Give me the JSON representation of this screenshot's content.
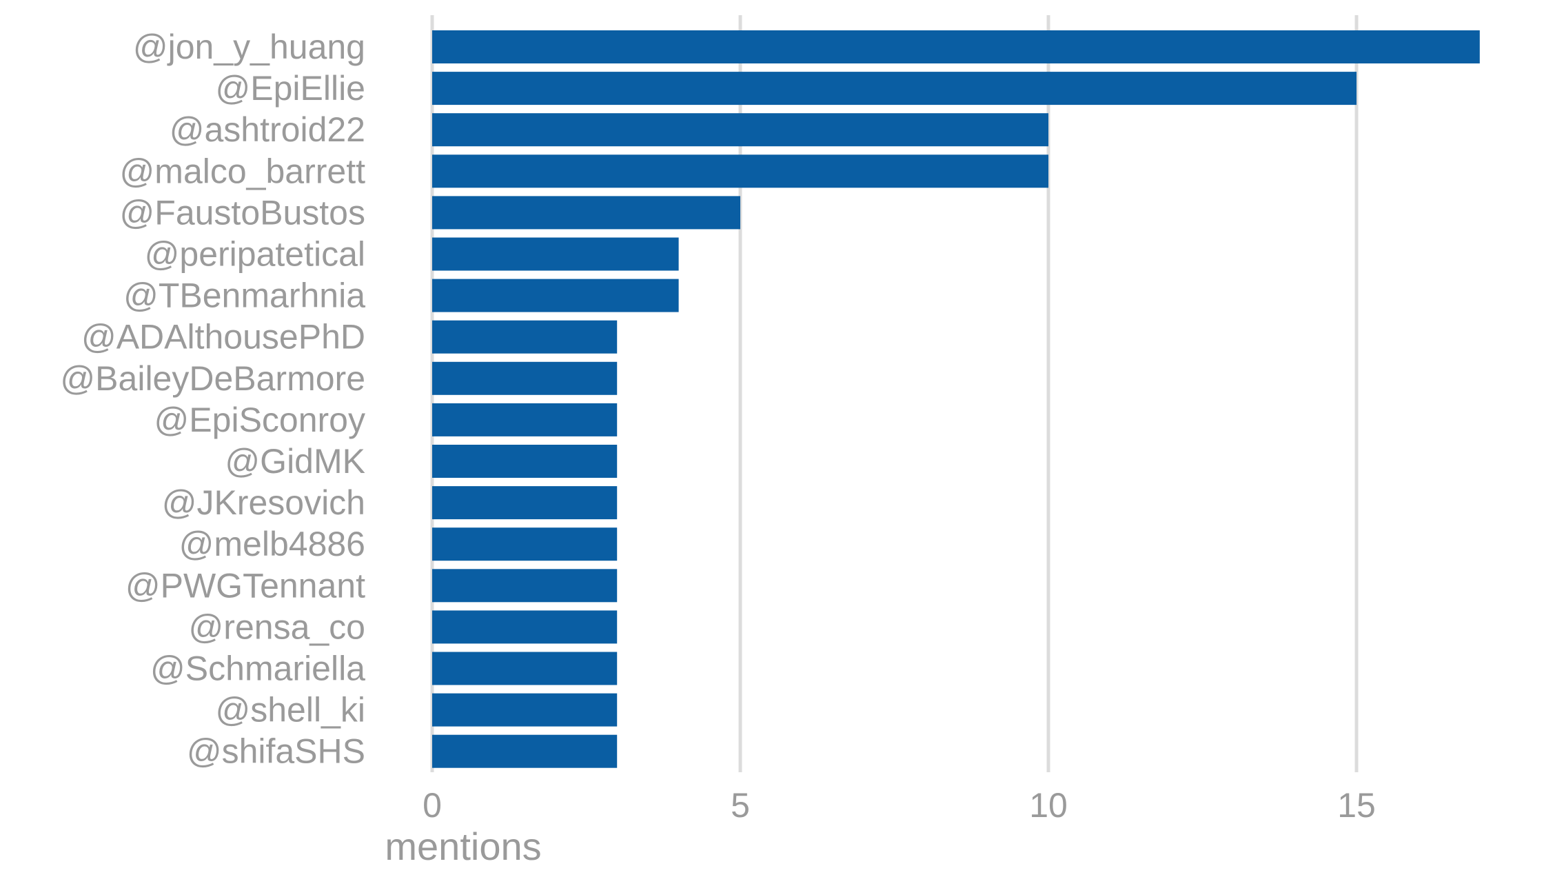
{
  "chart_data": {
    "type": "bar",
    "orientation": "horizontal",
    "categories": [
      "@jon_y_huang",
      "@EpiEllie",
      "@ashtroid22",
      "@malco_barrett",
      "@FaustoBustos",
      "@peripatetical",
      "@TBenmarhnia",
      "@ADAlthousePhD",
      "@BaileyDeBarmore",
      "@EpiSconroy",
      "@GidMK",
      "@JKresovich",
      "@melb4886",
      "@PWGTennant",
      "@rensa_co",
      "@Schmariella",
      "@shell_ki",
      "@shifaSHS"
    ],
    "values": [
      17,
      15,
      10,
      10,
      5,
      4,
      4,
      3,
      3,
      3,
      3,
      3,
      3,
      3,
      3,
      3,
      3,
      3
    ],
    "xlabel": "mentions",
    "ylabel": "",
    "xlim": [
      0,
      17.7
    ],
    "xticks": [
      0,
      5,
      10,
      15
    ],
    "xtick_labels": [
      "0",
      "5",
      "10",
      "15"
    ],
    "grid": "vertical major",
    "legend": "none",
    "colors": {
      "bar": "#0a5ea3",
      "grid": "#dcdcdc",
      "text": "#9a9a9a",
      "background": "#ffffff"
    }
  }
}
